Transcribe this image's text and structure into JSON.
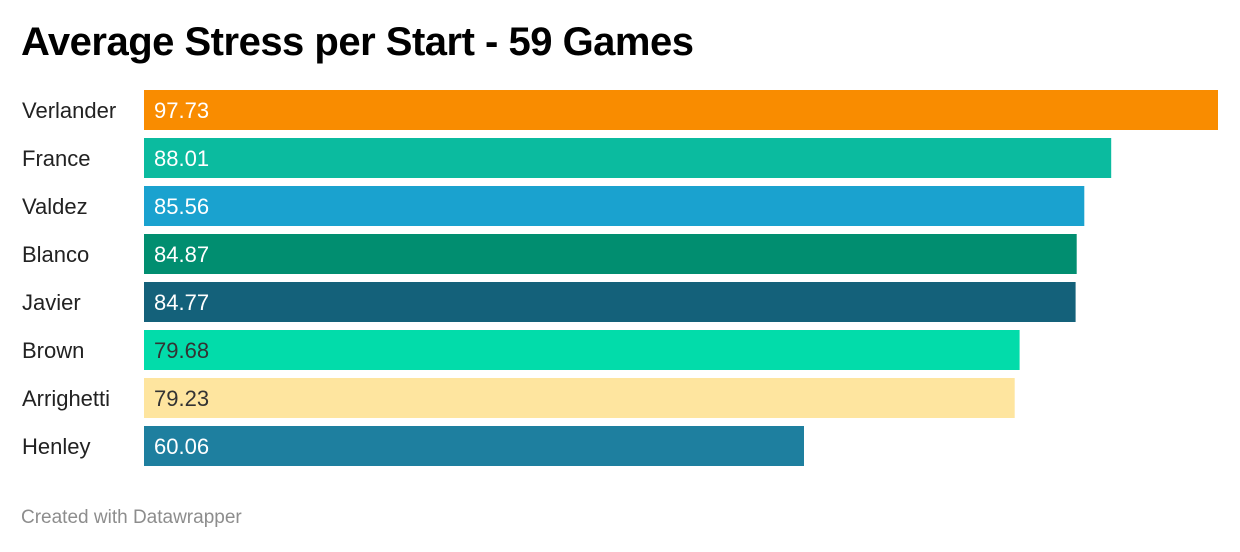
{
  "title": "Average Stress per Start - 59 Games",
  "footer": "Created with Datawrapper",
  "chart_data": {
    "type": "bar",
    "orientation": "horizontal",
    "title": "Average Stress per Start - 59 Games",
    "xlabel": "",
    "ylabel": "",
    "grid": false,
    "legend": "none",
    "xlim": [
      0,
      97.73
    ],
    "categories": [
      "Verlander",
      "France",
      "Valdez",
      "Blanco",
      "Javier",
      "Brown",
      "Arrighetti",
      "Henley"
    ],
    "values": [
      97.73,
      88.01,
      85.56,
      84.87,
      84.77,
      79.68,
      79.23,
      60.06
    ],
    "value_labels": [
      "97.73",
      "88.01",
      "85.56",
      "84.87",
      "84.77",
      "79.68",
      "79.23",
      "60.06"
    ],
    "colors": [
      "#f98c00",
      "#0bbb9f",
      "#1aa2cf",
      "#018e70",
      "#14617a",
      "#02dcaa",
      "#fee59f",
      "#1e7f9f"
    ],
    "label_colors": [
      "#ffffff",
      "#ffffff",
      "#ffffff",
      "#ffffff",
      "#ffffff",
      "#333333",
      "#333333",
      "#ffffff"
    ]
  }
}
